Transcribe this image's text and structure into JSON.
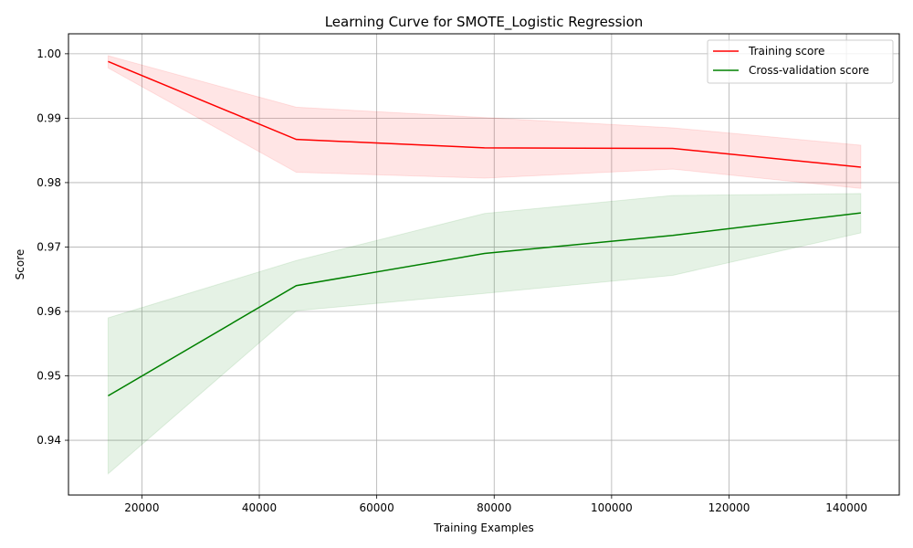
{
  "chart_data": {
    "type": "line",
    "title": "Learning Curve for SMOTE_Logistic Regression",
    "xlabel": "Training Examples",
    "ylabel": "Score",
    "xlim": [
      7500,
      149000
    ],
    "ylim": [
      0.9315,
      1.0031
    ],
    "xticks": [
      20000,
      40000,
      60000,
      80000,
      100000,
      120000,
      140000
    ],
    "yticks": [
      0.94,
      0.95,
      0.96,
      0.97,
      0.98,
      0.99,
      1.0
    ],
    "xtick_labels": [
      "20000",
      "40000",
      "60000",
      "80000",
      "100000",
      "120000",
      "140000"
    ],
    "ytick_labels": [
      "0.94",
      "0.95",
      "0.96",
      "0.97",
      "0.98",
      "0.99",
      "1.00"
    ],
    "grid": true,
    "legend_position": "top-right",
    "x": [
      14250,
      46300,
      78350,
      110400,
      142450
    ],
    "series": [
      {
        "name": "Training score",
        "color": "#ff0000",
        "band_color": "#ffcccc",
        "values": [
          0.9988,
          0.9867,
          0.9854,
          0.9853,
          0.9824
        ],
        "upper": [
          0.9997,
          0.9917,
          0.9901,
          0.9885,
          0.9858
        ],
        "lower": [
          0.9978,
          0.9816,
          0.9807,
          0.9821,
          0.9791
        ]
      },
      {
        "name": "Cross-validation score",
        "color": "#008000",
        "band_color": "#b3d9b3",
        "values": [
          0.9469,
          0.964,
          0.969,
          0.9718,
          0.9753
        ],
        "upper": [
          0.959,
          0.9679,
          0.9752,
          0.978,
          0.9783
        ],
        "lower": [
          0.9348,
          0.9601,
          0.9628,
          0.9656,
          0.9722
        ]
      }
    ]
  }
}
